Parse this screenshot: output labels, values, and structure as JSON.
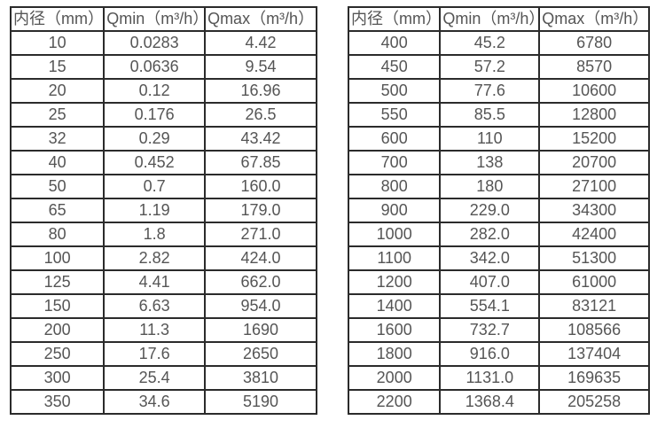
{
  "page": {
    "background_color": "#ffffff",
    "border_color": "#2b2b2b",
    "text_color": "#555555"
  },
  "tables": [
    {
      "name": "flow-table-small-diameters",
      "headers": [
        "内径（mm）",
        "Qmin（m³/h）",
        "Qmax（m³/h）"
      ],
      "rows": [
        [
          "10",
          "0.0283",
          "4.42"
        ],
        [
          "15",
          "0.0636",
          "9.54"
        ],
        [
          "20",
          "0.12",
          "16.96"
        ],
        [
          "25",
          "0.176",
          "26.5"
        ],
        [
          "32",
          "0.29",
          "43.42"
        ],
        [
          "40",
          "0.452",
          "67.85"
        ],
        [
          "50",
          "0.7",
          "160.0"
        ],
        [
          "65",
          "1.19",
          "179.0"
        ],
        [
          "80",
          "1.8",
          "271.0"
        ],
        [
          "100",
          "2.82",
          "424.0"
        ],
        [
          "125",
          "4.41",
          "662.0"
        ],
        [
          "150",
          "6.63",
          "954.0"
        ],
        [
          "200",
          "11.3",
          "1690"
        ],
        [
          "250",
          "17.6",
          "2650"
        ],
        [
          "300",
          "25.4",
          "3810"
        ],
        [
          "350",
          "34.6",
          "5190"
        ]
      ]
    },
    {
      "name": "flow-table-large-diameters",
      "headers": [
        "内径（mm）",
        "Qmin（m³/h）",
        "Qmax（m³/h）"
      ],
      "rows": [
        [
          "400",
          "45.2",
          "6780"
        ],
        [
          "450",
          "57.2",
          "8570"
        ],
        [
          "500",
          "77.6",
          "10600"
        ],
        [
          "550",
          "85.5",
          "12800"
        ],
        [
          "600",
          "110",
          "15200"
        ],
        [
          "700",
          "138",
          "20700"
        ],
        [
          "800",
          "180",
          "27100"
        ],
        [
          "900",
          "229.0",
          "34300"
        ],
        [
          "1000",
          "282.0",
          "42400"
        ],
        [
          "1100",
          "342.0",
          "51300"
        ],
        [
          "1200",
          "407.0",
          "61000"
        ],
        [
          "1400",
          "554.1",
          "83121"
        ],
        [
          "1600",
          "732.7",
          "108566"
        ],
        [
          "1800",
          "916.0",
          "137404"
        ],
        [
          "2000",
          "1131.0",
          "169635"
        ],
        [
          "2200",
          "1368.4",
          "205258"
        ]
      ]
    }
  ]
}
